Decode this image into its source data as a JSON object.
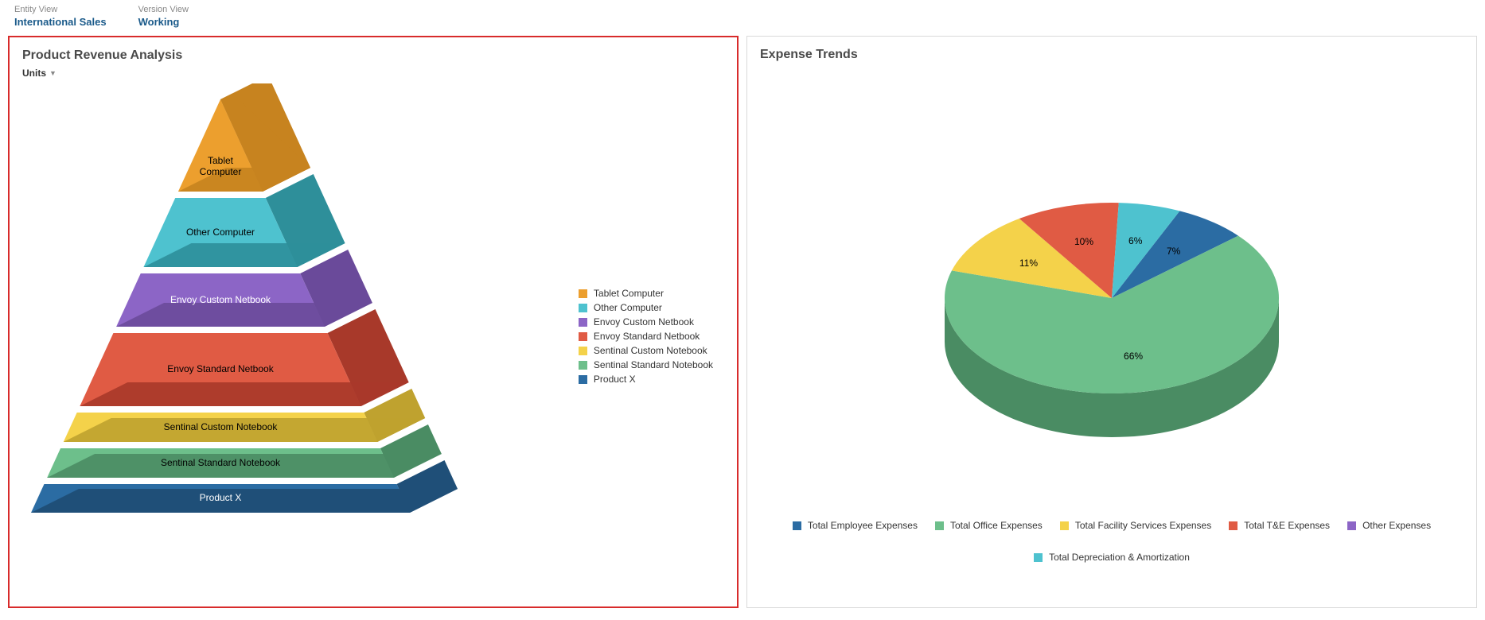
{
  "top": {
    "entity": {
      "label": "Entity View",
      "value": "International Sales"
    },
    "version": {
      "label": "Version View",
      "value": "Working"
    }
  },
  "revenue_panel": {
    "title": "Product Revenue Analysis",
    "measure": "Units",
    "chart": {
      "type": "pyramid-3d",
      "background_color": "#ffffff",
      "slices": [
        {
          "label": "Tablet Computer",
          "color": "#ec9f2e",
          "side_color": "#c7831f",
          "label_color": "#000000"
        },
        {
          "label": "Other Computer",
          "color": "#4ec2cf",
          "side_color": "#2e8f9a",
          "label_color": "#000000"
        },
        {
          "label": "Envoy Custom Netbook",
          "color": "#8c65c6",
          "side_color": "#6a4a9a",
          "label_color": "#ffffff"
        },
        {
          "label": "Envoy Standard Netbook",
          "color": "#e05b44",
          "side_color": "#a8392a",
          "label_color": "#000000"
        },
        {
          "label": "Sentinal Custom Notebook",
          "color": "#f4d24a",
          "side_color": "#bfa22f",
          "label_color": "#000000"
        },
        {
          "label": "Sentinal Standard Notebook",
          "color": "#6dbf8b",
          "side_color": "#4a8c63",
          "label_color": "#000000"
        },
        {
          "label": "Product X",
          "color": "#2b6ca3",
          "side_color": "#1f4f78",
          "label_color": "#ffffff"
        }
      ],
      "legend": [
        {
          "label": "Tablet Computer",
          "color": "#ec9f2e"
        },
        {
          "label": "Other Computer",
          "color": "#4ec2cf"
        },
        {
          "label": "Envoy Custom Netbook",
          "color": "#8c65c6"
        },
        {
          "label": "Envoy Standard Netbook",
          "color": "#e05b44"
        },
        {
          "label": "Sentinal Custom Notebook",
          "color": "#f4d24a"
        },
        {
          "label": "Sentinal Standard Notebook",
          "color": "#6dbf8b"
        },
        {
          "label": "Product X",
          "color": "#2b6ca3"
        }
      ]
    }
  },
  "expense_panel": {
    "title": "Expense Trends",
    "chart": {
      "type": "pie-3d",
      "background_color": "#ffffff",
      "slices": [
        {
          "label": "Total Employee Expenses",
          "value": 7,
          "text": "7%",
          "color": "#2b6ca3",
          "side_color": "#1f4f78"
        },
        {
          "label": "Total Office Expenses",
          "value": 66,
          "text": "66%",
          "color": "#6dbf8b",
          "side_color": "#4a8c63"
        },
        {
          "label": "Total Facility Services Expenses",
          "value": 11,
          "text": "11%",
          "color": "#f4d24a",
          "side_color": "#bfa22f"
        },
        {
          "label": "Total T&E Expenses",
          "value": 10,
          "text": "10%",
          "color": "#e05b44",
          "side_color": "#a8392a"
        },
        {
          "label": "Other Expenses",
          "value": 0,
          "text": "",
          "color": "#8c65c6",
          "side_color": "#6a4a9a"
        },
        {
          "label": "Total Depreciation & Amortization",
          "value": 6,
          "text": "6%",
          "color": "#4ec2cf",
          "side_color": "#2e8f9a"
        }
      ],
      "legend": [
        {
          "label": "Total Employee Expenses",
          "color": "#2b6ca3"
        },
        {
          "label": "Total Office Expenses",
          "color": "#6dbf8b"
        },
        {
          "label": "Total Facility Services Expenses",
          "color": "#f4d24a"
        },
        {
          "label": "Total T&E Expenses",
          "color": "#e05b44"
        },
        {
          "label": "Other Expenses",
          "color": "#8c65c6"
        },
        {
          "label": "Total Depreciation & Amortization",
          "color": "#4ec2cf"
        }
      ]
    }
  }
}
